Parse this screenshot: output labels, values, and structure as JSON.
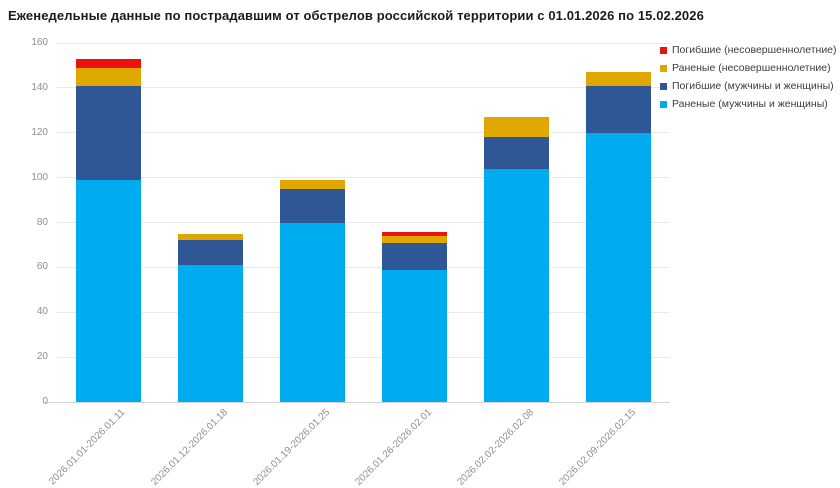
{
  "title": "Еженедельные данные по пострадавшим от обстрелов российской территории с 01.01.2026 по 15.02.2026",
  "colors": {
    "wounded_adults": "#00ACF0",
    "killed_adults": "#2F5796",
    "wounded_minors": "#E0A700",
    "killed_minors": "#EC120D",
    "grid": "#e9e9e9",
    "axis_text": "#8f8f8f",
    "title_text": "#1b1b1b"
  },
  "chart_data": {
    "type": "bar",
    "stacked": true,
    "title": "Еженедельные данные по пострадавшим от обстрелов российской территории с 01.01.2026 по 15.02.2026",
    "categories": [
      "2026.01.01-2026.01.11",
      "2026.01.12-2026.01.18",
      "2026.01.19-2026.01.25",
      "2026.01.26-2026.02.01",
      "2026.02.02-2026.02.08",
      "2026.02.09-2026.02.15"
    ],
    "series": [
      {
        "name": "Раненые (мужчины и женщины)",
        "color": "#00ACF0",
        "values": [
          99,
          61,
          80,
          59,
          104,
          120
        ]
      },
      {
        "name": "Погибшие (мужчины и женщины)",
        "color": "#2F5796",
        "values": [
          42,
          11,
          15,
          12,
          14,
          21
        ]
      },
      {
        "name": "Раненые (несовершеннолетние)",
        "color": "#E0A700",
        "values": [
          8,
          3,
          4,
          3,
          9,
          6
        ]
      },
      {
        "name": "Погибшие (несовершеннолетние)",
        "color": "#EC120D",
        "values": [
          4,
          0,
          0,
          2,
          0,
          0
        ]
      }
    ],
    "totals": [
      153,
      75,
      99,
      76,
      127,
      147
    ],
    "legend": [
      {
        "label": "Погибшие (несовершеннолетние)",
        "color": "#EC120D"
      },
      {
        "label": "Раненые (несовершеннолетние)",
        "color": "#E0A700"
      },
      {
        "label": "Погибшие (мужчины и женщины)",
        "color": "#2F5796"
      },
      {
        "label": "Раненые (мужчины и женщины)",
        "color": "#00ACF0"
      }
    ],
    "xlabel": "",
    "ylabel": "",
    "ylim": [
      0,
      160
    ],
    "ytick_step": 20,
    "yticks": [
      0,
      20,
      40,
      60,
      80,
      100,
      120,
      140,
      160
    ],
    "grid": true,
    "legend_position": "top-right"
  }
}
